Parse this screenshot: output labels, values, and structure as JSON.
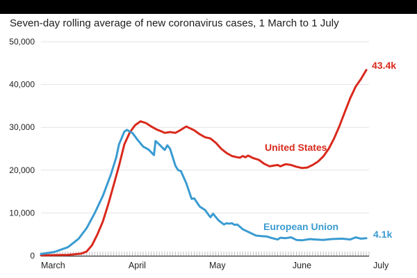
{
  "chart_data": {
    "type": "line",
    "title": "Seven-day rolling average of new coronavirus cases, 1 March to 1 July",
    "xlabel": "",
    "ylabel": "",
    "x_range_days": [
      0,
      122
    ],
    "ylim": [
      0,
      50000
    ],
    "grid": true,
    "y_ticks": [
      {
        "value": 0,
        "label": "0"
      },
      {
        "value": 10000,
        "label": "10,000"
      },
      {
        "value": 20000,
        "label": "20,000"
      },
      {
        "value": 30000,
        "label": "30,000"
      },
      {
        "value": 40000,
        "label": "40,000"
      },
      {
        "value": 50000,
        "label": "50,000"
      }
    ],
    "x_ticks": [
      {
        "day": 0,
        "label": "March"
      },
      {
        "day": 31,
        "label": "April"
      },
      {
        "day": 61,
        "label": "May"
      },
      {
        "day": 92,
        "label": "June"
      },
      {
        "day": 122,
        "label": "July"
      }
    ],
    "series": [
      {
        "name": "United States",
        "color": "#d9291c",
        "end_label": "43.4k",
        "points": [
          [
            0,
            100
          ],
          [
            10,
            200
          ],
          [
            15,
            500
          ],
          [
            17,
            1000
          ],
          [
            19,
            2500
          ],
          [
            21,
            5000
          ],
          [
            23,
            8000
          ],
          [
            25,
            12000
          ],
          [
            27,
            16500
          ],
          [
            29,
            21000
          ],
          [
            31,
            26000
          ],
          [
            33,
            28800
          ],
          [
            35,
            30500
          ],
          [
            37,
            31400
          ],
          [
            38,
            31200
          ],
          [
            39,
            31000
          ],
          [
            41,
            30200
          ],
          [
            43,
            29500
          ],
          [
            45,
            29000
          ],
          [
            46,
            28700
          ],
          [
            48,
            28900
          ],
          [
            50,
            28700
          ],
          [
            52,
            29400
          ],
          [
            54,
            30200
          ],
          [
            55,
            29900
          ],
          [
            57,
            29300
          ],
          [
            59,
            28400
          ],
          [
            61,
            27700
          ],
          [
            63,
            27400
          ],
          [
            65,
            26400
          ],
          [
            67,
            25000
          ],
          [
            69,
            24000
          ],
          [
            71,
            23300
          ],
          [
            73,
            23000
          ],
          [
            74,
            22900
          ],
          [
            75,
            23300
          ],
          [
            76,
            23000
          ],
          [
            77,
            23400
          ],
          [
            79,
            22800
          ],
          [
            81,
            22400
          ],
          [
            83,
            21500
          ],
          [
            85,
            20900
          ],
          [
            86,
            21000
          ],
          [
            88,
            21200
          ],
          [
            89,
            20900
          ],
          [
            91,
            21400
          ],
          [
            93,
            21200
          ],
          [
            95,
            20800
          ],
          [
            97,
            20500
          ],
          [
            99,
            20600
          ],
          [
            101,
            21200
          ],
          [
            103,
            22000
          ],
          [
            105,
            23200
          ],
          [
            107,
            25000
          ],
          [
            109,
            27400
          ],
          [
            111,
            30300
          ],
          [
            113,
            33600
          ],
          [
            115,
            36800
          ],
          [
            117,
            39500
          ],
          [
            119,
            41300
          ],
          [
            121,
            43400
          ]
        ]
      },
      {
        "name": "European Union",
        "color": "#3a9bd1",
        "end_label": "4.1k",
        "points": [
          [
            0,
            400
          ],
          [
            5,
            900
          ],
          [
            10,
            2000
          ],
          [
            14,
            4000
          ],
          [
            17,
            6500
          ],
          [
            20,
            10000
          ],
          [
            23,
            14000
          ],
          [
            26,
            19000
          ],
          [
            28,
            23000
          ],
          [
            29,
            26000
          ],
          [
            30,
            27500
          ],
          [
            31,
            29000
          ],
          [
            32,
            29400
          ],
          [
            33,
            29000
          ],
          [
            34,
            28700
          ],
          [
            36,
            27000
          ],
          [
            38,
            25500
          ],
          [
            40,
            24800
          ],
          [
            42,
            23500
          ],
          [
            42.6,
            26800
          ],
          [
            44,
            26000
          ],
          [
            46,
            24700
          ],
          [
            47,
            25800
          ],
          [
            48,
            25000
          ],
          [
            50,
            21000
          ],
          [
            51,
            20000
          ],
          [
            52,
            19800
          ],
          [
            54,
            17000
          ],
          [
            56,
            13300
          ],
          [
            57,
            13400
          ],
          [
            59,
            11500
          ],
          [
            61,
            10700
          ],
          [
            63,
            9000
          ],
          [
            64,
            9800
          ],
          [
            66,
            8300
          ],
          [
            68,
            7300
          ],
          [
            69,
            7600
          ],
          [
            70,
            7500
          ],
          [
            71,
            7600
          ],
          [
            72,
            7200
          ],
          [
            73,
            7300
          ],
          [
            75,
            6200
          ],
          [
            78,
            5300
          ],
          [
            80,
            4700
          ],
          [
            82,
            4600
          ],
          [
            84,
            4500
          ],
          [
            86,
            4100
          ],
          [
            88,
            3800
          ],
          [
            89,
            4200
          ],
          [
            91,
            4100
          ],
          [
            93,
            4300
          ],
          [
            95,
            3700
          ],
          [
            97,
            3600
          ],
          [
            100,
            3900
          ],
          [
            102,
            3800
          ],
          [
            105,
            3700
          ],
          [
            108,
            3900
          ],
          [
            112,
            4000
          ],
          [
            115,
            3800
          ],
          [
            117,
            4300
          ],
          [
            119,
            4000
          ],
          [
            121,
            4100
          ]
        ]
      }
    ]
  }
}
